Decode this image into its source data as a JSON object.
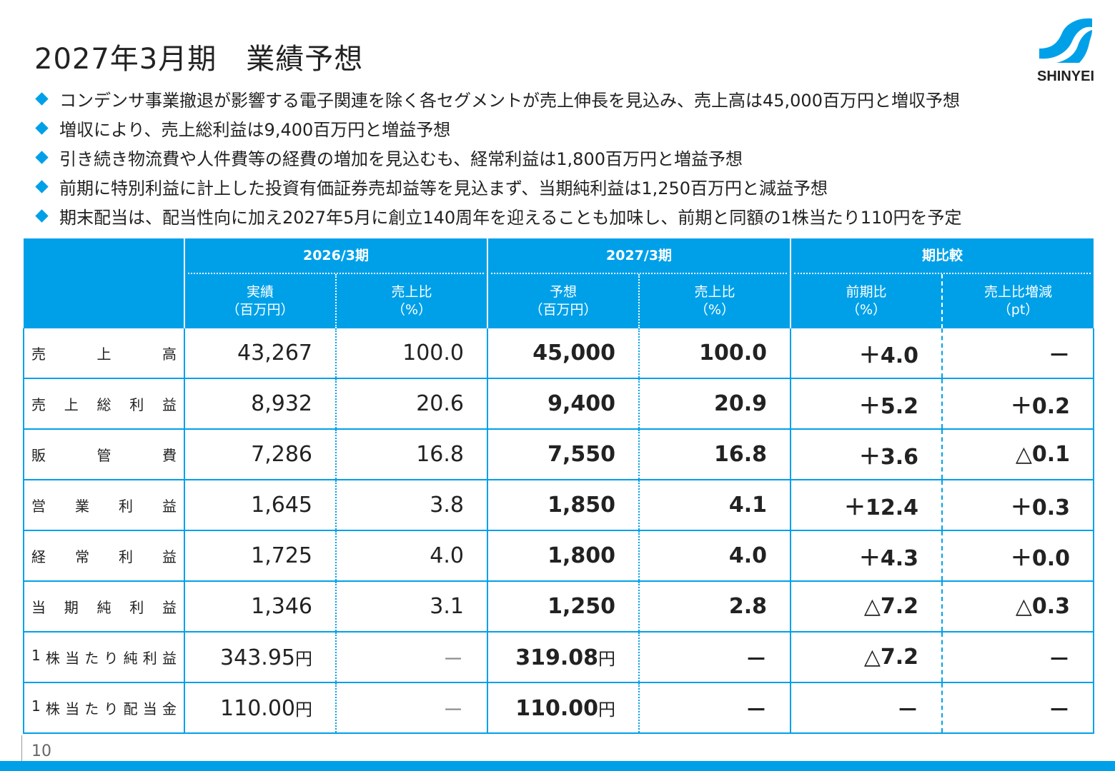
{
  "title": "2027年3月期　業績予想",
  "logo": {
    "text": "SHINYEI",
    "color": "#00a0e9"
  },
  "bullets": [
    "コンデンサ事業撤退が影響する電子関連を除く各セグメントが売上伸長を見込み、売上高は45,000百万円と増収予想",
    "増収により、売上総利益は9,400百万円と増益予想",
    "引き続き物流費や人件費等の経費の増加を見込むも、経常利益は1,800百万円と増益予想",
    "前期に特別利益に計上した投資有価証券売却益等を見込まず、当期純利益は1,250百万円と減益予想",
    "期末配当は、配当性向に加え2027年5月に創立140周年を迎えることも加味し、前期と同額の1株当たり110円を予定"
  ],
  "table": {
    "groups": [
      "2026/3期",
      "2027/3期",
      "期比較"
    ],
    "subheaders": [
      {
        "l1": "実績",
        "l2": "（百万円）"
      },
      {
        "l1": "売上比",
        "l2": "（%）"
      },
      {
        "l1": "予想",
        "l2": "（百万円）"
      },
      {
        "l1": "売上比",
        "l2": "（%）"
      },
      {
        "l1": "前期比",
        "l2": "（%）"
      },
      {
        "l1": "売上比増減",
        "l2": "（pt）"
      }
    ],
    "rows": [
      {
        "label": [
          "売",
          "上",
          "高"
        ],
        "v": [
          "43,267",
          "100.0",
          "45,000",
          "100.0",
          "＋4.0",
          "－"
        ]
      },
      {
        "label": [
          "売",
          "上",
          "総",
          "利",
          "益"
        ],
        "v": [
          "8,932",
          "20.6",
          "9,400",
          "20.9",
          "＋5.2",
          "＋0.2"
        ]
      },
      {
        "label": [
          "販",
          "管",
          "費"
        ],
        "v": [
          "7,286",
          "16.8",
          "7,550",
          "16.8",
          "＋3.6",
          "△0.1"
        ]
      },
      {
        "label": [
          "営",
          "業",
          "利",
          "益"
        ],
        "v": [
          "1,645",
          "3.8",
          "1,850",
          "4.1",
          "＋12.4",
          "＋0.3"
        ]
      },
      {
        "label": [
          "経",
          "常",
          "利",
          "益"
        ],
        "v": [
          "1,725",
          "4.0",
          "1,800",
          "4.0",
          "＋4.3",
          "＋0.0"
        ]
      },
      {
        "label": [
          "当",
          "期",
          "純",
          "利",
          "益"
        ],
        "v": [
          "1,346",
          "3.1",
          "1,250",
          "2.8",
          "△7.2",
          "△0.3"
        ]
      },
      {
        "label": [
          "1",
          "株",
          "当",
          "た",
          "り",
          "純",
          "利",
          "益"
        ],
        "v": [
          "343.95",
          "－",
          "319.08",
          "－",
          "△7.2",
          "－"
        ],
        "unit": "円"
      },
      {
        "label": [
          "1",
          "株",
          "当",
          "た",
          "り",
          "配",
          "当",
          "金"
        ],
        "v": [
          "110.00",
          "－",
          "110.00",
          "－",
          "－",
          "－"
        ],
        "unit": "円"
      }
    ]
  },
  "page_number": "10"
}
